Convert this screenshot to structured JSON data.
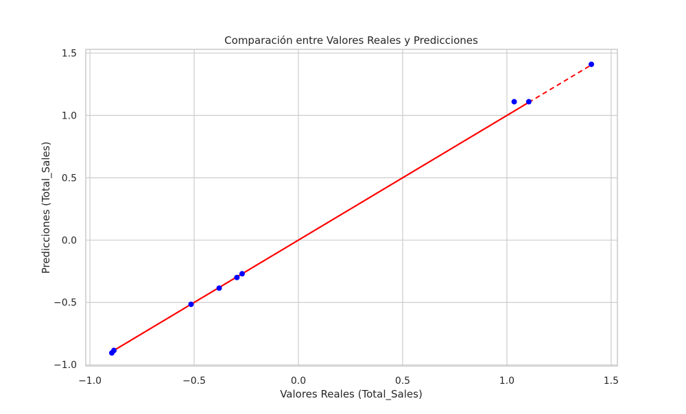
{
  "chart_data": {
    "type": "scatter",
    "title": "Comparación entre Valores Reales y Predicciones",
    "xlabel": "Valores Reales (Total_Sales)",
    "ylabel": "Predicciones (Total_Sales)",
    "xlim": [
      -1.02,
      1.53
    ],
    "ylim": [
      -1.01,
      1.53
    ],
    "x_ticks": [
      -1.0,
      -0.5,
      0.0,
      0.5,
      1.0,
      1.5
    ],
    "x_tick_labels": [
      "−1.0",
      "−0.5",
      "0.0",
      "0.5",
      "1.0",
      "1.5"
    ],
    "y_ticks": [
      -1.0,
      -0.5,
      0.0,
      0.5,
      1.0,
      1.5
    ],
    "y_tick_labels": [
      "−1.0",
      "−0.5",
      "0.0",
      "0.5",
      "1.0",
      "1.5"
    ],
    "grid": true,
    "point_color": "#0000ff",
    "line_color": "#ff0000",
    "points": [
      {
        "x": -0.895,
        "y": -0.905
      },
      {
        "x": -0.885,
        "y": -0.885
      },
      {
        "x": -0.515,
        "y": -0.515
      },
      {
        "x": -0.38,
        "y": -0.385
      },
      {
        "x": -0.295,
        "y": -0.3
      },
      {
        "x": -0.27,
        "y": -0.27
      },
      {
        "x": 1.035,
        "y": 1.11
      },
      {
        "x": 1.105,
        "y": 1.11
      },
      {
        "x": 1.405,
        "y": 1.41
      }
    ],
    "prediction_line": {
      "style": "solid",
      "points": [
        {
          "x": -0.895,
          "y": -0.895
        },
        {
          "x": -0.885,
          "y": -0.885
        },
        {
          "x": -0.515,
          "y": -0.515
        },
        {
          "x": -0.38,
          "y": -0.38
        },
        {
          "x": -0.295,
          "y": -0.295
        },
        {
          "x": -0.27,
          "y": -0.27
        },
        {
          "x": 1.035,
          "y": 1.035
        },
        {
          "x": 1.105,
          "y": 1.105
        },
        {
          "x": 1.405,
          "y": 1.405
        }
      ]
    },
    "identity_line": {
      "style": "dashed",
      "from": {
        "x": -0.895,
        "y": -0.895
      },
      "to": {
        "x": 1.405,
        "y": 1.405
      }
    }
  }
}
